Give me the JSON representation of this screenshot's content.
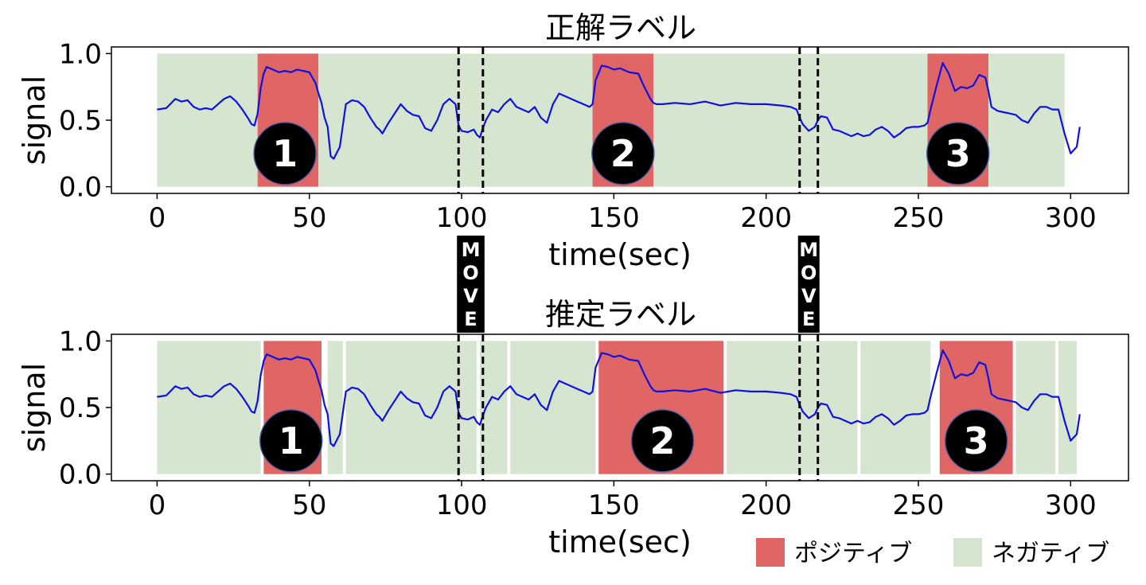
{
  "chart_data": [
    {
      "type": "line",
      "title": "正解ラベル",
      "xlabel": "time(sec)",
      "ylabel": "signal",
      "xlim": [
        -15,
        319
      ],
      "ylim": [
        -0.05,
        1.05
      ],
      "xticks": [
        0,
        50,
        100,
        150,
        200,
        250,
        300
      ],
      "yticks": [
        0.0,
        0.5,
        1.0
      ],
      "xtick_labels": [
        "0",
        "50",
        "100",
        "150",
        "200",
        "250",
        "300"
      ],
      "ytick_labels": [
        "0.0",
        "0.5",
        "1.0"
      ],
      "segments": [
        {
          "label": "negative",
          "start": 0,
          "end": 33
        },
        {
          "label": "positive",
          "start": 33,
          "end": 53
        },
        {
          "label": "negative",
          "start": 53,
          "end": 143
        },
        {
          "label": "positive",
          "start": 143,
          "end": 163
        },
        {
          "label": "negative",
          "start": 163,
          "end": 253
        },
        {
          "label": "positive",
          "start": 253,
          "end": 273
        },
        {
          "label": "negative",
          "start": 273,
          "end": 298
        }
      ],
      "markers": [
        {
          "label": "1",
          "x": 42,
          "y": 0.25
        },
        {
          "label": "2",
          "x": 153,
          "y": 0.25
        },
        {
          "label": "3",
          "x": 263,
          "y": 0.25
        }
      ],
      "move_lines": [
        99,
        107,
        211,
        217
      ],
      "grid": false
    },
    {
      "type": "line",
      "title": "推定ラベル",
      "xlabel": "time(sec)",
      "ylabel": "signal",
      "xlim": [
        -15,
        319
      ],
      "ylim": [
        -0.05,
        1.05
      ],
      "xticks": [
        0,
        50,
        100,
        150,
        200,
        250,
        300
      ],
      "yticks": [
        0.0,
        0.5,
        1.0
      ],
      "xtick_labels": [
        "0",
        "50",
        "100",
        "150",
        "200",
        "250",
        "300"
      ],
      "ytick_labels": [
        "0.0",
        "0.5",
        "1.0"
      ],
      "segments": [
        {
          "label": "negative",
          "start": 0,
          "end": 34
        },
        {
          "label": "positive",
          "start": 35,
          "end": 54
        },
        {
          "label": "negative",
          "start": 56,
          "end": 61
        },
        {
          "label": "negative",
          "start": 62,
          "end": 105
        },
        {
          "label": "negative",
          "start": 106,
          "end": 115
        },
        {
          "label": "negative",
          "start": 116,
          "end": 144
        },
        {
          "label": "positive",
          "start": 145,
          "end": 186
        },
        {
          "label": "negative",
          "start": 187,
          "end": 230
        },
        {
          "label": "negative",
          "start": 231,
          "end": 254
        },
        {
          "label": "positive",
          "start": 257,
          "end": 281
        },
        {
          "label": "negative",
          "start": 282,
          "end": 295
        },
        {
          "label": "negative",
          "start": 296,
          "end": 302
        }
      ],
      "markers": [
        {
          "label": "1",
          "x": 44,
          "y": 0.25
        },
        {
          "label": "2",
          "x": 166,
          "y": 0.25
        },
        {
          "label": "3",
          "x": 269,
          "y": 0.25
        }
      ],
      "move_lines": [
        99,
        107,
        211,
        217
      ],
      "grid": false
    }
  ],
  "signal": {
    "t": [
      0,
      3,
      6,
      8,
      10,
      12,
      14,
      16,
      18,
      20,
      22,
      24,
      26,
      28,
      30,
      31,
      32,
      33,
      34,
      35,
      36,
      38,
      40,
      42,
      44,
      46,
      48,
      50,
      52,
      53,
      54,
      55,
      56,
      57,
      58,
      60,
      62,
      64,
      66,
      68,
      70,
      72,
      73,
      74,
      76,
      78,
      80,
      82,
      84,
      86,
      88,
      90,
      92,
      94,
      96,
      98,
      99,
      100,
      102,
      104,
      105,
      106,
      107,
      108,
      110,
      112,
      114,
      116,
      118,
      120,
      122,
      124,
      126,
      128,
      130,
      132,
      134,
      136,
      138,
      140,
      142,
      143,
      144,
      146,
      148,
      150,
      152,
      155,
      158,
      160,
      162,
      163,
      164,
      166,
      170,
      175,
      180,
      185,
      190,
      195,
      200,
      205,
      208,
      210,
      211,
      212,
      214,
      216,
      217,
      218,
      220,
      222,
      224,
      226,
      228,
      230,
      232,
      234,
      236,
      238,
      240,
      242,
      244,
      246,
      248,
      250,
      252,
      253,
      254,
      256,
      258,
      260,
      262,
      264,
      266,
      268,
      270,
      272,
      273,
      274,
      276,
      278,
      280,
      282,
      284,
      286,
      288,
      290,
      292,
      294,
      296,
      298,
      300,
      302,
      303
    ],
    "v": [
      0.58,
      0.59,
      0.66,
      0.64,
      0.65,
      0.6,
      0.58,
      0.59,
      0.58,
      0.62,
      0.66,
      0.68,
      0.64,
      0.58,
      0.51,
      0.47,
      0.46,
      0.55,
      0.74,
      0.85,
      0.9,
      0.88,
      0.86,
      0.87,
      0.86,
      0.88,
      0.87,
      0.86,
      0.78,
      0.7,
      0.63,
      0.52,
      0.45,
      0.23,
      0.21,
      0.3,
      0.62,
      0.65,
      0.64,
      0.6,
      0.52,
      0.45,
      0.43,
      0.4,
      0.48,
      0.55,
      0.62,
      0.57,
      0.54,
      0.53,
      0.44,
      0.42,
      0.5,
      0.62,
      0.66,
      0.62,
      0.46,
      0.42,
      0.41,
      0.43,
      0.39,
      0.37,
      0.44,
      0.5,
      0.58,
      0.56,
      0.62,
      0.66,
      0.6,
      0.58,
      0.56,
      0.6,
      0.52,
      0.48,
      0.62,
      0.7,
      0.68,
      0.66,
      0.64,
      0.62,
      0.6,
      0.62,
      0.8,
      0.91,
      0.9,
      0.88,
      0.89,
      0.86,
      0.85,
      0.75,
      0.66,
      0.63,
      0.62,
      0.62,
      0.63,
      0.62,
      0.64,
      0.61,
      0.63,
      0.62,
      0.62,
      0.61,
      0.6,
      0.58,
      0.52,
      0.47,
      0.42,
      0.45,
      0.5,
      0.53,
      0.52,
      0.43,
      0.42,
      0.4,
      0.38,
      0.4,
      0.38,
      0.39,
      0.43,
      0.45,
      0.42,
      0.37,
      0.4,
      0.44,
      0.45,
      0.45,
      0.46,
      0.48,
      0.58,
      0.76,
      0.93,
      0.85,
      0.72,
      0.75,
      0.74,
      0.76,
      0.84,
      0.82,
      0.72,
      0.6,
      0.57,
      0.56,
      0.55,
      0.54,
      0.5,
      0.48,
      0.55,
      0.6,
      0.6,
      0.58,
      0.58,
      0.4,
      0.25,
      0.3,
      0.45,
      0.55,
      0.53
    ]
  },
  "move_label": [
    "M",
    "O",
    "V",
    "E"
  ],
  "legend": {
    "positive_label": "ポジティブ",
    "negative_label": "ネガティブ",
    "position": "bottom-right"
  },
  "colors": {
    "positive": "#e06666",
    "negative": "#d5e5cf",
    "signal": "#1010e0",
    "marker_fill": "#000000",
    "marker_stroke": "#4a5a9a",
    "move": "#000000"
  }
}
